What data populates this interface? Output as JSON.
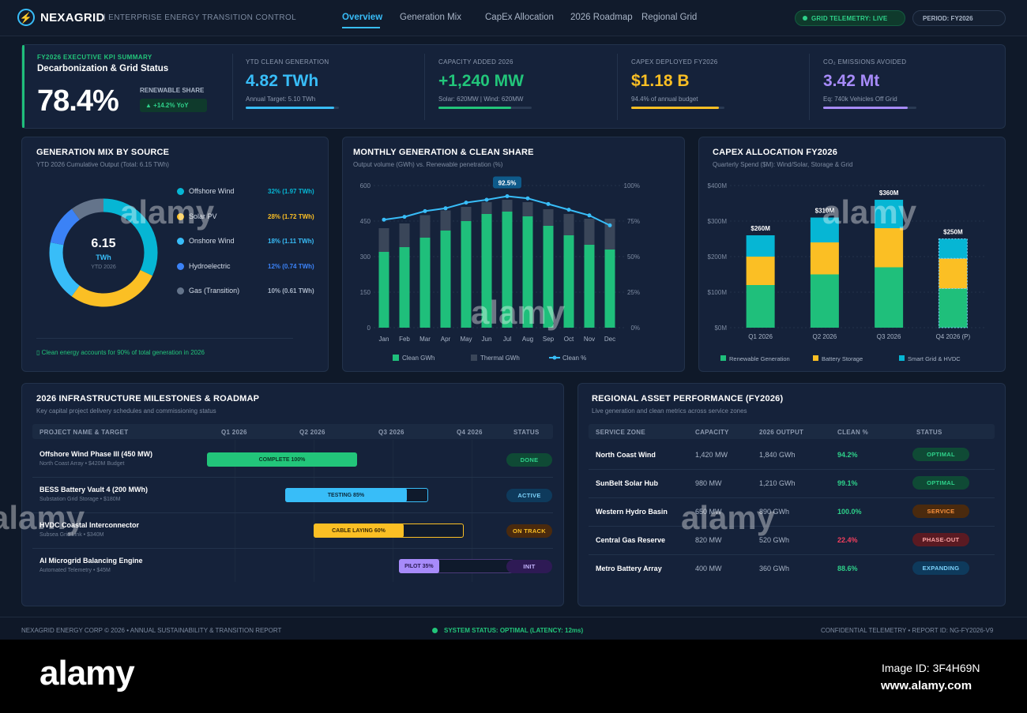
{
  "header": {
    "brand": "NEXAGRID",
    "tagline": "| ENTERPRISE ENERGY TRANSITION CONTROL",
    "nav": [
      "Overview",
      "Generation Mix",
      "CapEx Allocation",
      "2026 Roadmap",
      "Regional Grid"
    ],
    "telemetry": "GRID TELEMETRY: LIVE",
    "period": "PERIOD: FY2026"
  },
  "kpi": {
    "eyebrow": "FY2026 EXECUTIVE KPI SUMMARY",
    "title": "Decarbonization & Grid Status",
    "share_value": "78.4%",
    "share_label": "RENEWABLE SHARE",
    "share_delta": "▲ +14.2% YoY",
    "cards": [
      {
        "label": "YTD CLEAN GENERATION",
        "value": "4.82 TWh",
        "note": "Annual Target: 5.10 TWh",
        "color": "#38bdf8",
        "progress": 0.945
      },
      {
        "label": "CAPACITY ADDED 2026",
        "value": "+1,240 MW",
        "note": "Solar: 620MW | Wind: 620MW",
        "color": "#22c57a",
        "progress": 0.78
      },
      {
        "label": "CAPEX DEPLOYED FY2026",
        "value": "$1.18 B",
        "note": "94.4% of annual budget",
        "color": "#fbbf24",
        "progress": 0.944
      },
      {
        "label": "CO₂ EMISSIONS AVOIDED",
        "value": "3.42 Mt",
        "note": "Eq: 740k Vehicles Off Grid",
        "color": "#a78bfa",
        "progress": 0.91
      }
    ]
  },
  "gen_mix": {
    "title": "GENERATION MIX BY SOURCE",
    "subtitle": "YTD 2026 Cumulative Output (Total: 6.15 TWh)",
    "center_value": "6.15",
    "center_unit": "TWh",
    "center_label": "YTD 2026",
    "footnote": "▯ Clean energy accounts for 90% of total generation in 2026",
    "sources": [
      {
        "name": "Offshore Wind",
        "value": "32% (1.97 TWh)",
        "pct": 32,
        "color": "#06b6d4"
      },
      {
        "name": "Solar PV",
        "value": "28% (1.72 TWh)",
        "pct": 28,
        "color": "#fbbf24"
      },
      {
        "name": "Onshore Wind",
        "value": "18% (1.11 TWh)",
        "pct": 18,
        "color": "#38bdf8"
      },
      {
        "name": "Hydroelectric",
        "value": "12% (0.74 TWh)",
        "pct": 12,
        "color": "#3b82f6"
      },
      {
        "name": "Gas (Transition)",
        "value": "10% (0.61 TWh)",
        "pct": 10,
        "color": "#64748b"
      }
    ]
  },
  "monthly": {
    "title": "MONTHLY GENERATION & CLEAN SHARE",
    "subtitle": "Output volume (GWh) vs. Renewable penetration (%)",
    "callout": "92.5%",
    "legend": [
      "Clean GWh",
      "Thermal GWh",
      "Clean %"
    ]
  },
  "capex": {
    "title": "CAPEX ALLOCATION FY2026",
    "subtitle": "Quarterly Spend ($M): Wind/Solar, Storage & Grid",
    "legend": [
      "Renewable Generation",
      "Battery Storage",
      "Smart Grid & HVDC"
    ]
  },
  "roadmap": {
    "title": "2026 INFRASTRUCTURE MILESTONES & ROADMAP",
    "subtitle": "Key capital project delivery schedules and commissioning status",
    "headers": [
      "PROJECT NAME & TARGET",
      "Q1 2026",
      "Q2 2026",
      "Q3 2026",
      "Q4 2026",
      "STATUS"
    ],
    "projects": [
      {
        "name": "Offshore Wind Phase III (450 MW)",
        "sub": "North Coast Array • $420M Budget",
        "bar": "COMPLETE 100%",
        "status": "DONE",
        "progress": 1.0
      },
      {
        "name": "BESS Battery Vault 4 (200 MWh)",
        "sub": "Substation Grid Storage • $180M",
        "bar": "TESTING 85%",
        "status": "ACTIVE",
        "progress": 0.85
      },
      {
        "name": "HVDC Coastal Interconnector",
        "sub": "Subsea Grid Link • $340M",
        "bar": "CABLE LAYING 60%",
        "status": "ON TRACK",
        "progress": 0.6
      },
      {
        "name": "AI Microgrid Balancing Engine",
        "sub": "Automated Telemetry • $45M",
        "bar": "PILOT 35%",
        "status": "INIT",
        "progress": 0.35
      }
    ]
  },
  "regional": {
    "title": "REGIONAL ASSET PERFORMANCE (FY2026)",
    "subtitle": "Live generation and clean metrics across service zones",
    "headers": [
      "SERVICE ZONE",
      "CAPACITY",
      "2026 OUTPUT",
      "CLEAN %",
      "STATUS"
    ],
    "rows": [
      {
        "zone": "North Coast Wind",
        "capacity": "1,420 MW",
        "output": "1,840 GWh",
        "clean": "94.2%",
        "status": "OPTIMAL"
      },
      {
        "zone": "SunBelt Solar Hub",
        "capacity": "980 MW",
        "output": "1,210 GWh",
        "clean": "99.1%",
        "status": "OPTIMAL"
      },
      {
        "zone": "Western Hydro Basin",
        "capacity": "650 MW",
        "output": "890 GWh",
        "clean": "100.0%",
        "status": "SERVICE"
      },
      {
        "zone": "Central Gas Reserve",
        "capacity": "820 MW",
        "output": "520 GWh",
        "clean": "22.4%",
        "status": "PHASE-OUT"
      },
      {
        "zone": "Metro Battery Array",
        "capacity": "400 MW",
        "output": "360 GWh",
        "clean": "88.6%",
        "status": "EXPANDING"
      }
    ]
  },
  "footer": {
    "left": "NEXAGRID ENERGY CORP © 2026 • ANNUAL SUSTAINABILITY & TRANSITION REPORT",
    "center": "SYSTEM STATUS: OPTIMAL (LATENCY: 12ms)",
    "right": "CONFIDENTIAL TELEMETRY • REPORT ID: NG-FY2026-V9"
  },
  "stock": {
    "logo": "alamy",
    "image_id": "Image ID: 3F4H69N",
    "url": "www.alamy.com"
  },
  "chart_data": [
    {
      "type": "bar",
      "title": "MONTHLY GENERATION & CLEAN SHARE",
      "categories": [
        "Jan",
        "Feb",
        "Mar",
        "Apr",
        "May",
        "Jun",
        "Jul",
        "Aug",
        "Sep",
        "Oct",
        "Nov",
        "Dec"
      ],
      "series": [
        {
          "name": "Clean GWh",
          "values": [
            320,
            340,
            380,
            410,
            450,
            480,
            490,
            470,
            430,
            390,
            350,
            330
          ],
          "color": "#1fbf7b"
        },
        {
          "name": "Thermal GWh",
          "values": [
            100,
            100,
            95,
            85,
            60,
            50,
            50,
            60,
            70,
            90,
            110,
            130
          ],
          "color": "#3a4659"
        },
        {
          "name": "Clean %",
          "axis": "right",
          "values": [
            76,
            78,
            82,
            84,
            88,
            90,
            92.5,
            91,
            87,
            83,
            79,
            72
          ],
          "color": "#38bdf8"
        }
      ],
      "yticks": [
        "0",
        "150",
        "300",
        "450",
        "600"
      ],
      "y2ticks": [
        "0%",
        "25%",
        "50%",
        "75%",
        "100%"
      ],
      "ylim": [
        0,
        600
      ],
      "y2lim": [
        0,
        100
      ]
    },
    {
      "type": "bar",
      "title": "CAPEX ALLOCATION FY2026",
      "categories": [
        "Q1 2026",
        "Q2 2026",
        "Q3 2026",
        "Q4 2026 (P)"
      ],
      "totals": [
        "$260M",
        "$310M",
        "$360M",
        "$250M"
      ],
      "series": [
        {
          "name": "Renewable Generation",
          "values": [
            120,
            150,
            170,
            110
          ],
          "color": "#1fbf7b"
        },
        {
          "name": "Battery Storage",
          "values": [
            80,
            90,
            110,
            85
          ],
          "color": "#fbbf24"
        },
        {
          "name": "Smart Grid & HVDC",
          "values": [
            60,
            70,
            80,
            55
          ],
          "color": "#06b6d4"
        }
      ],
      "yticks": [
        "$0M",
        "$100M",
        "$200M",
        "$300M",
        "$400M"
      ],
      "ylim": [
        0,
        400
      ]
    }
  ]
}
